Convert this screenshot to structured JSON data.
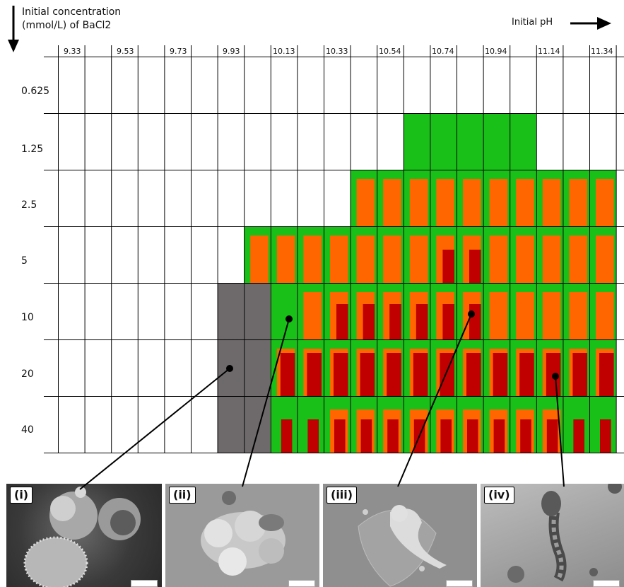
{
  "y_axis_title_line1": "Initial concentration",
  "y_axis_title_line2": "(mmol/L) of BaCl2",
  "x_axis_title": "Initial pH",
  "ph_labels": [
    "9.33",
    "9.53",
    "9.73",
    "9.93",
    "10.13",
    "10.33",
    "10.54",
    "10.74",
    "10.94",
    "11.14",
    "11.34"
  ],
  "conc_labels": [
    "0.625",
    "1.25",
    "2.5",
    "5",
    "10",
    "20",
    "40"
  ],
  "colors": {
    "green": "#18c018",
    "orange": "#ff6600",
    "red": "#c00000",
    "gray": "#6e6a6b",
    "white": "#ffffff"
  },
  "grid_rows": [
    "",
    "..........GGGGG...",
    "........OOOOOOOOOO",
    "......OOOOOOOoooOO",
    ".....Z..GOOOOOOOOO",
    ".....Z..rrrrrrrrrr",
    ".....Z..RRRRRRRRRR"
  ],
  "grid_rows_note_skip": true,
  "photos": [
    {
      "tag": "(i)"
    },
    {
      "tag": "(ii)"
    },
    {
      "tag": "(iii)"
    },
    {
      "tag": "(iv)"
    }
  ]
}
